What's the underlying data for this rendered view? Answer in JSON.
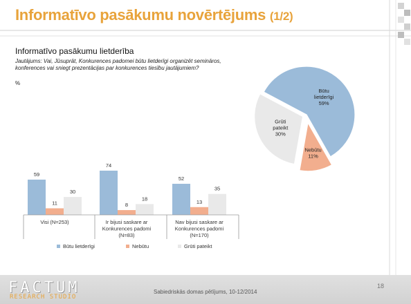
{
  "slide": {
    "title": "Informatīvo pasākumu novērtējums",
    "title_suffix": "(1/2)",
    "subtitle": "Informatīvo pasākumu lietderība",
    "question_label": "Jautājums:",
    "question_text": "Vai, Jūsuprāt, Konkurences padomei būtu lietderīgi organizēt semināros, konferences vai sniegt prezentācijas par konkurences tiesību jautājumiem?",
    "percent_sign": "%",
    "page_number": "18",
    "footer_text": "Sabiedriskās domas pētījums, 10-12/2014",
    "logo": {
      "main": "FACTUM",
      "sub": "RESEARCH STUDIO"
    }
  },
  "colors": {
    "title": "#E8A33B",
    "series": [
      "#9BBBD9",
      "#F2AE8E",
      "#E9E9E9"
    ],
    "deco_squares": "#C8C8C8"
  },
  "chart_data": [
    {
      "type": "bar",
      "categories": [
        [
          "Visi (N=253)"
        ],
        [
          "Ir bijusi saskare ar",
          "Konkurences padomi",
          "(N=83)"
        ],
        [
          "Nav bijusi saskare ar",
          "Konkurences padomi",
          "(N=170)"
        ]
      ],
      "series": [
        {
          "name": "Būtu lietderīgi",
          "values": [
            59,
            74,
            52
          ]
        },
        {
          "name": "Nebūtu",
          "values": [
            11,
            8,
            13
          ]
        },
        {
          "name": "Grūti pateikt",
          "values": [
            30,
            18,
            35
          ]
        }
      ],
      "ylim": [
        0,
        80
      ],
      "grid": false,
      "legend": "bottom",
      "data_labels": true
    },
    {
      "type": "pie",
      "slices": [
        {
          "label": [
            "Būtu",
            "lietderīgi"
          ],
          "value": 59,
          "value_label": "59%"
        },
        {
          "label": [
            "Nebūtu"
          ],
          "value": 11,
          "value_label": "11%"
        },
        {
          "label": [
            "Grūti",
            "pateikt"
          ],
          "value": 30,
          "value_label": "30%"
        }
      ],
      "exploded": true
    }
  ]
}
